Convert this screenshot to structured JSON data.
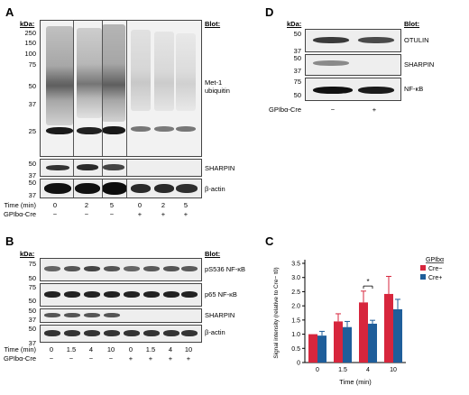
{
  "panels": {
    "A": {
      "letter": "A",
      "kda_label": "kDa:",
      "blot_label": "Blot:",
      "mw_markers": [
        "250",
        "150",
        "100",
        "75",
        "50",
        "37",
        "25",
        "50",
        "37"
      ],
      "blots": [
        "Met-1\nubiquitin",
        "SHARPIN",
        "β-actin"
      ],
      "time_label": "Time (min)",
      "genotype_label": "GPIbα-Cre",
      "time_values": [
        "0",
        "2",
        "5",
        "0",
        "2",
        "5"
      ],
      "genotype_values": [
        "−",
        "−",
        "−",
        "+",
        "+",
        "+"
      ]
    },
    "B": {
      "letter": "B",
      "kda_label": "kDa:",
      "blot_label": "Blot:",
      "mw_markers": [
        "75",
        "50",
        "75",
        "50",
        "50",
        "37",
        "50",
        "37"
      ],
      "blots": [
        "pS536 NF-κB",
        "p65 NF-κB",
        "SHARPIN",
        "β-actin"
      ],
      "time_label": "Time (min)",
      "genotype_label": "GPIbα-Cre",
      "time_values": [
        "0",
        "1.5",
        "4",
        "10",
        "0",
        "1.5",
        "4",
        "10"
      ],
      "genotype_values": [
        "−",
        "−",
        "−",
        "−",
        "+",
        "+",
        "+",
        "+"
      ]
    },
    "C": {
      "letter": "C"
    },
    "D": {
      "letter": "D",
      "kda_label": "kDa:",
      "blot_label": "Blot:",
      "mw_markers": [
        "50",
        "37",
        "50",
        "37",
        "75",
        "50"
      ],
      "blots": [
        "OTULIN",
        "SHARPIN",
        "NF-κB"
      ],
      "genotype_label": "GPIbα-Cre",
      "genotype_values": [
        "−",
        "+"
      ]
    }
  },
  "chart_data": {
    "type": "bar",
    "title": "",
    "xlabel": "Time (min)",
    "ylabel": "Signal intensity (relative to Cre− t0)",
    "categories": [
      "0",
      "1.5",
      "4",
      "10"
    ],
    "ylim": [
      0,
      3.5
    ],
    "yticks": [
      "0",
      "0.5",
      "1.0",
      "1.5",
      "2.0",
      "2.5",
      "3.0",
      "3.5"
    ],
    "legend_title": "GPIbα",
    "legend_position": "top-right",
    "significance": {
      "category": "4",
      "label": "*"
    },
    "series": [
      {
        "name": "Cre−",
        "color": "#d7263d",
        "values": [
          1.0,
          1.45,
          2.12,
          2.42
        ],
        "errors": [
          0.0,
          0.27,
          0.4,
          0.62
        ]
      },
      {
        "name": "Cre+",
        "color": "#1f5e9a",
        "values": [
          0.95,
          1.25,
          1.37,
          1.88
        ],
        "errors": [
          0.15,
          0.2,
          0.12,
          0.35
        ]
      }
    ]
  }
}
